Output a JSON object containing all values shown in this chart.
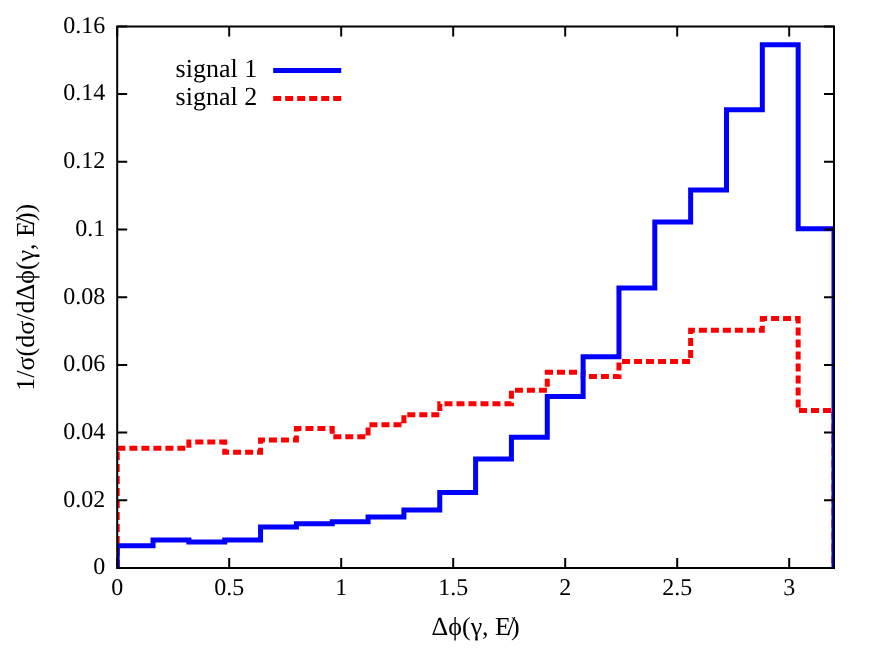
{
  "chart_data": {
    "type": "histogram",
    "xlabel": "Δϕ(γ, E̸)",
    "ylabel": "1/σ(dσ/dΔϕ(γ, E̸))",
    "bins": [
      0,
      0.16,
      0.32,
      0.48,
      0.64,
      0.8,
      0.96,
      1.12,
      1.28,
      1.44,
      1.6,
      1.76,
      1.92,
      2.08,
      2.24,
      2.4,
      2.56,
      2.72,
      2.88,
      3.04,
      3.2
    ],
    "series": [
      {
        "name": "signal 1",
        "color": "#0000ff",
        "line_style": "solid",
        "values": [
          0.0066,
          0.0083,
          0.0077,
          0.0083,
          0.0121,
          0.0131,
          0.0137,
          0.0151,
          0.0171,
          0.0223,
          0.0322,
          0.0386,
          0.0507,
          0.0624,
          0.0827,
          0.1022,
          0.1117,
          0.1354,
          0.1546,
          0.1002
        ]
      },
      {
        "name": "signal 2",
        "color": "#ff0000",
        "line_style": "dashed",
        "values": [
          0.0354,
          0.0354,
          0.0372,
          0.0342,
          0.0378,
          0.0412,
          0.0388,
          0.0423,
          0.0453,
          0.0485,
          0.0485,
          0.0525,
          0.0578,
          0.0566,
          0.061,
          0.061,
          0.0702,
          0.0702,
          0.0737,
          0.0465
        ]
      }
    ],
    "xlim": [
      0,
      3.2
    ],
    "xticks": [
      0,
      0.5,
      1,
      1.5,
      2,
      2.5,
      3
    ],
    "ylim": [
      0,
      0.16
    ],
    "yticks": [
      0,
      0.02,
      0.04,
      0.06,
      0.08,
      0.1,
      0.12,
      0.14,
      0.16
    ],
    "grid": false,
    "legend": "top left"
  }
}
